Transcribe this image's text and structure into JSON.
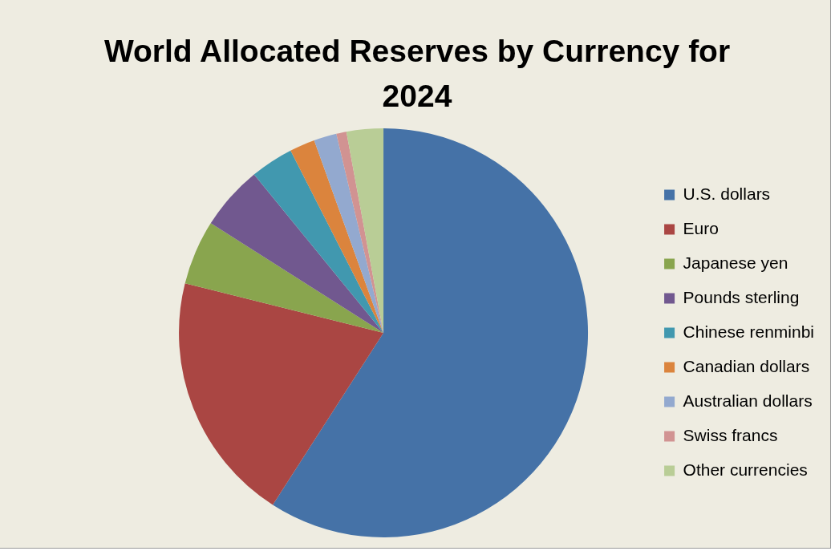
{
  "chart_data": {
    "type": "pie",
    "title": "World Allocated Reserves by Currency for 2024",
    "categories": [
      "U.S. dollars",
      "Euro",
      "Japanese yen",
      "Pounds sterling",
      "Chinese renminbi",
      "Canadian dollars",
      "Australian dollars",
      "Swiss francs",
      "Other currencies"
    ],
    "values": [
      59.1,
      19.8,
      5.1,
      5.1,
      3.4,
      2.0,
      1.8,
      0.8,
      2.9
    ],
    "colors": [
      "#4572a7",
      "#aa4643",
      "#89a54e",
      "#71588f",
      "#4198af",
      "#db843d",
      "#93a9cf",
      "#d19392",
      "#b9cd96"
    ],
    "legend": "right"
  }
}
